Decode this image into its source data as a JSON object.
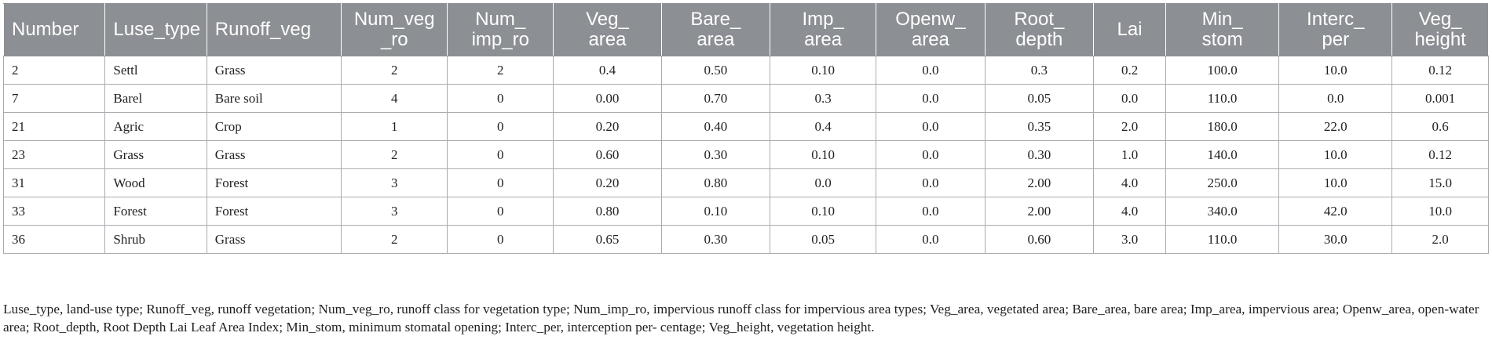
{
  "table": {
    "headers": [
      "Number",
      "Luse_type",
      "Runoff_veg",
      "Num_veg\n_ro",
      "Num_\nimp_ro",
      "Veg_\narea",
      "Bare_\narea",
      "Imp_\narea",
      "Openw_\narea",
      "Root_\ndepth",
      "Lai",
      "Min_\nstom",
      "Interc_\nper",
      "Veg_\nheight"
    ],
    "rows": [
      [
        "2",
        "Settl",
        "Grass",
        "2",
        "2",
        "0.4",
        "0.50",
        "0.10",
        "0.0",
        "0.3",
        "0.2",
        "100.0",
        "10.0",
        "0.12"
      ],
      [
        "7",
        "Barel",
        "Bare soil",
        "4",
        "0",
        "0.00",
        "0.70",
        "0.3",
        "0.0",
        "0.05",
        "0.0",
        "110.0",
        "0.0",
        "0.001"
      ],
      [
        "21",
        "Agric",
        "Crop",
        "1",
        "0",
        "0.20",
        "0.40",
        "0.4",
        "0.0",
        "0.35",
        "2.0",
        "180.0",
        "22.0",
        "0.6"
      ],
      [
        "23",
        "Grass",
        "Grass",
        "2",
        "0",
        "0.60",
        "0.30",
        "0.10",
        "0.0",
        "0.30",
        "1.0",
        "140.0",
        "10.0",
        "0.12"
      ],
      [
        "31",
        "Wood",
        "Forest",
        "3",
        "0",
        "0.20",
        "0.80",
        "0.0",
        "0.0",
        "2.00",
        "4.0",
        "250.0",
        "10.0",
        "15.0"
      ],
      [
        "33",
        "Forest",
        "Forest",
        "3",
        "0",
        "0.80",
        "0.10",
        "0.10",
        "0.0",
        "2.00",
        "4.0",
        "340.0",
        "42.0",
        "10.0"
      ],
      [
        "36",
        "Shrub",
        "Grass",
        "2",
        "0",
        "0.65",
        "0.30",
        "0.05",
        "0.0",
        "0.60",
        "3.0",
        "110.0",
        "30.0",
        "2.0"
      ]
    ]
  },
  "footnote": "Luse_type, land-use type; Runoff_veg, runoff vegetation; Num_veg_ro, runoff class for vegetation type; Num_imp_ro, impervious runoff class for impervious area types; Veg_area, vegetated area; Bare_area, bare area; Imp_area, impervious area; Openw_area, open-water area; Root_depth, Root Depth Lai Leaf Area Index; Min_stom, minimum stomatal opening; Interc_per, interception per- centage; Veg_height, vegetation height."
}
